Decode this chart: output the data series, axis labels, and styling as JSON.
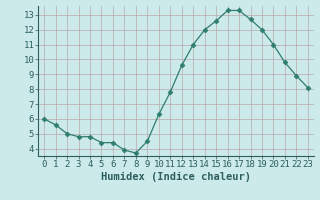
{
  "x": [
    0,
    1,
    2,
    3,
    4,
    5,
    6,
    7,
    8,
    9,
    10,
    11,
    12,
    13,
    14,
    15,
    16,
    17,
    18,
    19,
    20,
    21,
    22,
    23
  ],
  "y": [
    6.0,
    5.6,
    5.0,
    4.8,
    4.8,
    4.4,
    4.4,
    3.9,
    3.7,
    4.5,
    6.3,
    7.8,
    9.6,
    11.0,
    12.0,
    12.6,
    13.3,
    13.3,
    12.7,
    12.0,
    11.0,
    9.8,
    8.9,
    8.1
  ],
  "line_color": "#2e7d6e",
  "marker": "D",
  "marker_size": 2.5,
  "bg_color": "#cceaea",
  "grid_color": "#b8a8a8",
  "xlabel": "Humidex (Indice chaleur)",
  "xlim": [
    -0.5,
    23.5
  ],
  "ylim": [
    3.5,
    13.6
  ],
  "yticks": [
    4,
    5,
    6,
    7,
    8,
    9,
    10,
    11,
    12,
    13
  ],
  "xticks": [
    0,
    1,
    2,
    3,
    4,
    5,
    6,
    7,
    8,
    9,
    10,
    11,
    12,
    13,
    14,
    15,
    16,
    17,
    18,
    19,
    20,
    21,
    22,
    23
  ],
  "tick_fontsize": 6.5,
  "xlabel_fontsize": 7.5
}
